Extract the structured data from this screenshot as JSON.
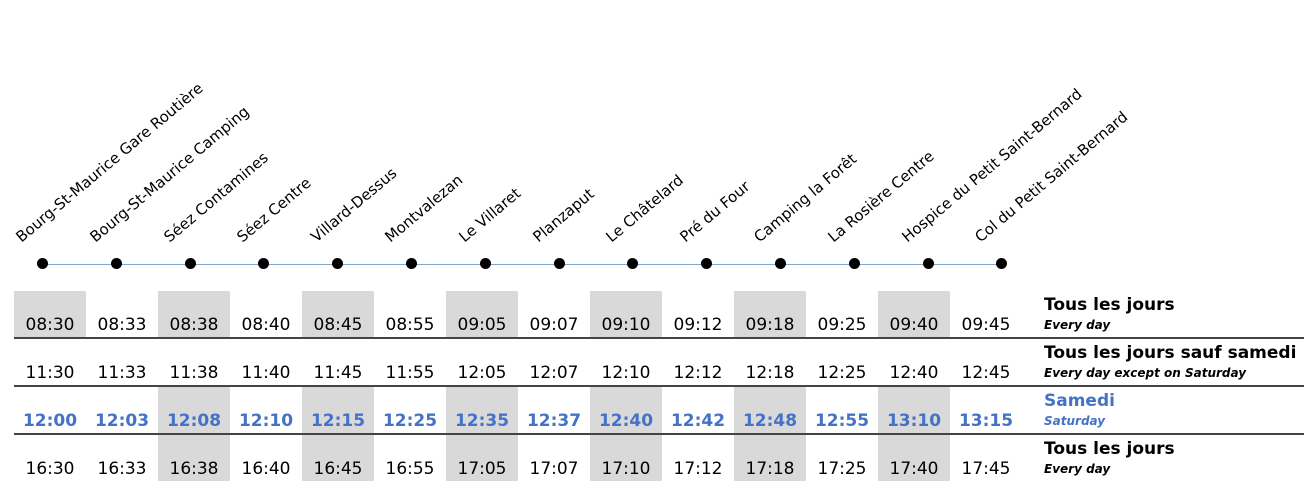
{
  "stops": [
    "Bourg-St-Maurice Gare Routière",
    "Bourg-St-Maurice Camping",
    "Séez Contamines",
    "Séez Centre",
    "Villard-Dessus",
    "Montvalezan",
    "Le Villaret",
    "Planzaput",
    "Le Châtelard",
    "Pré du Four",
    "Camping la Forêt",
    "La Rosière Centre",
    "Hospice du Petit Saint-Bernard",
    "Col du Petit Saint-Bernard"
  ],
  "trips": [
    {
      "times": [
        "08:30",
        "08:33",
        "08:38",
        "08:40",
        "08:45",
        "08:55",
        "09:05",
        "09:07",
        "09:10",
        "09:12",
        "09:18",
        "09:25",
        "09:40",
        "09:45"
      ],
      "days_fr": "Tous les jours",
      "days_en": "Every day",
      "highlight": false
    },
    {
      "times": [
        "11:30",
        "11:33",
        "11:38",
        "11:40",
        "11:45",
        "11:55",
        "12:05",
        "12:07",
        "12:10",
        "12:12",
        "12:18",
        "12:25",
        "12:40",
        "12:45"
      ],
      "days_fr": "Tous les jours sauf samedi",
      "days_en": "Every day except on Saturday",
      "highlight": false
    },
    {
      "times": [
        "12:00",
        "12:03",
        "12:08",
        "12:10",
        "12:15",
        "12:25",
        "12:35",
        "12:37",
        "12:40",
        "12:42",
        "12:48",
        "12:55",
        "13:10",
        "13:15"
      ],
      "days_fr": "Samedi",
      "days_en": "Saturday",
      "highlight": true
    },
    {
      "times": [
        "16:30",
        "16:33",
        "16:38",
        "16:40",
        "16:45",
        "16:55",
        "17:05",
        "17:07",
        "17:10",
        "17:12",
        "17:18",
        "17:25",
        "17:40",
        "17:45"
      ],
      "days_fr": "Tous les jours",
      "days_en": "Every day",
      "highlight": false
    }
  ],
  "colors": {
    "highlight": "#4472c4",
    "shade": "#d9d9d9",
    "route_line": "#7fa7c9"
  }
}
